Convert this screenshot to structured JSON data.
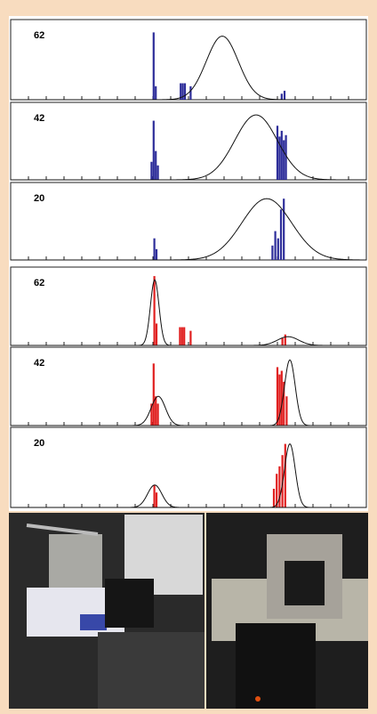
{
  "chart_data": [
    {
      "type": "histogram",
      "label": "62",
      "color": "#2e2e9a",
      "xlim": [
        0,
        100
      ],
      "ylim": [
        0,
        100
      ],
      "xticks": [
        5,
        10,
        15,
        20,
        25,
        30,
        35,
        40,
        45,
        50,
        55,
        60,
        65,
        70,
        75,
        80,
        85,
        90,
        95
      ],
      "x": [
        40.2,
        40.8,
        47.8,
        48.4,
        49.0,
        50.6,
        76.2,
        77.0
      ],
      "values": [
        90,
        18,
        22,
        22,
        22,
        18,
        8,
        12
      ],
      "fit": [
        {
          "mean": 59.5,
          "sd": 4.5,
          "peak": 85
        }
      ]
    },
    {
      "type": "histogram",
      "label": "42",
      "color": "#2e2e9a",
      "xlim": [
        0,
        100
      ],
      "ylim": [
        0,
        100
      ],
      "xticks": [
        5,
        10,
        15,
        20,
        25,
        30,
        35,
        40,
        45,
        50,
        55,
        60,
        65,
        70,
        75,
        80,
        85,
        90,
        95
      ],
      "x": [
        39.6,
        40.2,
        40.8,
        41.4,
        75.0,
        75.6,
        76.2,
        76.8,
        77.4
      ],
      "values": [
        25,
        82,
        40,
        20,
        75,
        60,
        68,
        55,
        62
      ],
      "fit": [
        {
          "mean": 69,
          "sd": 6,
          "peak": 90
        }
      ]
    },
    {
      "type": "histogram",
      "label": "20",
      "color": "#2e2e9a",
      "xlim": [
        0,
        100
      ],
      "ylim": [
        0,
        100
      ],
      "xticks": [
        5,
        10,
        15,
        20,
        25,
        30,
        35,
        40,
        45,
        50,
        55,
        60,
        65,
        70,
        75,
        80,
        85,
        90,
        95
      ],
      "x": [
        40.4,
        41.0,
        73.6,
        74.4,
        75.2,
        76.0,
        76.8
      ],
      "values": [
        30,
        15,
        20,
        40,
        30,
        70,
        85
      ],
      "fit": [
        {
          "mean": 72,
          "sd": 7,
          "peak": 85
        }
      ]
    },
    {
      "type": "histogram",
      "label": "62",
      "color": "#e02020",
      "xlim": [
        0,
        100
      ],
      "ylim": [
        0,
        100
      ],
      "xticks": [
        5,
        10,
        15,
        20,
        25,
        30,
        35,
        40,
        45,
        50,
        55,
        60,
        65,
        70,
        75,
        80,
        85,
        90,
        95
      ],
      "x": [
        40.4,
        41.0,
        47.6,
        48.2,
        48.8,
        50.6,
        76.4,
        77.2
      ],
      "values": [
        95,
        30,
        25,
        25,
        25,
        20,
        10,
        15
      ],
      "fit": [
        {
          "mean": 40.5,
          "sd": 1.2,
          "peak": 90
        },
        {
          "mean": 78,
          "sd": 3,
          "peak": 12
        }
      ]
    },
    {
      "type": "histogram",
      "label": "42",
      "color": "#e02020",
      "xlim": [
        0,
        100
      ],
      "ylim": [
        0,
        100
      ],
      "xticks": [
        5,
        10,
        15,
        20,
        25,
        30,
        35,
        40,
        45,
        50,
        55,
        60,
        65,
        70,
        75,
        80,
        85,
        90,
        95
      ],
      "x": [
        39.6,
        40.2,
        40.8,
        41.4,
        75.0,
        75.6,
        76.2,
        76.8,
        77.6
      ],
      "values": [
        30,
        85,
        40,
        30,
        80,
        70,
        75,
        60,
        40
      ],
      "fit": [
        {
          "mean": 41.5,
          "sd": 2,
          "peak": 40
        },
        {
          "mean": 78.5,
          "sd": 1.5,
          "peak": 90
        }
      ]
    },
    {
      "type": "histogram",
      "label": "20",
      "color": "#e02020",
      "xlim": [
        0,
        100
      ],
      "ylim": [
        0,
        100
      ],
      "xticks": [
        5,
        10,
        15,
        20,
        25,
        30,
        35,
        40,
        45,
        50,
        55,
        60,
        65,
        70,
        75,
        80,
        85,
        90,
        95
      ],
      "x": [
        40.4,
        41.0,
        74.0,
        74.8,
        75.6,
        76.4,
        77.2
      ],
      "values": [
        30,
        20,
        25,
        45,
        55,
        70,
        85
      ],
      "fit": [
        {
          "mean": 40.5,
          "sd": 2,
          "peak": 30
        },
        {
          "mean": 78.5,
          "sd": 1.5,
          "peak": 85
        }
      ]
    }
  ]
}
